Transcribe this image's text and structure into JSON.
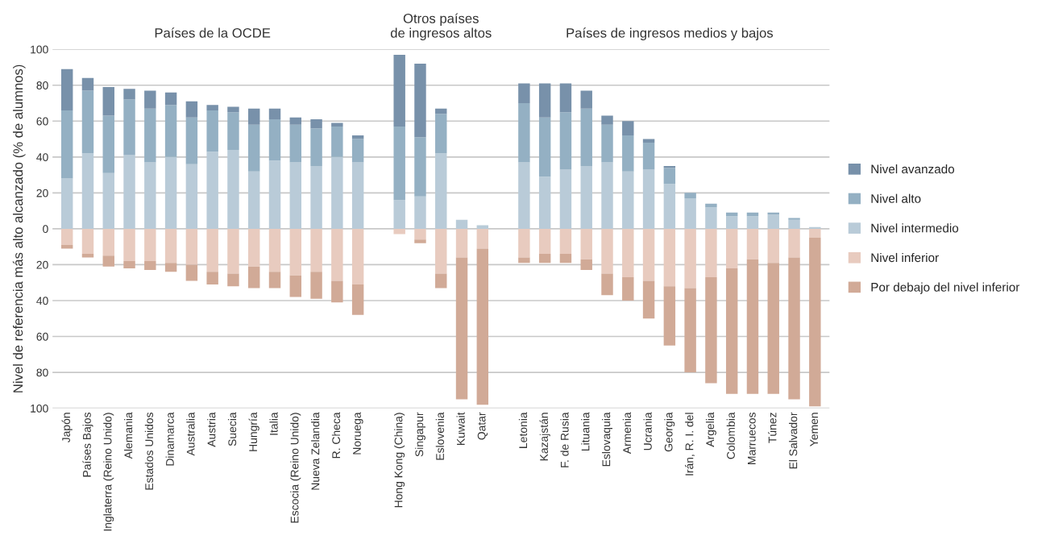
{
  "chart_data": {
    "type": "bar",
    "stacked": true,
    "ylabel": "Nivel de referencia más alto alcanzado (% de alumnos)",
    "categories": [
      "Japón",
      "Países Bajos",
      "Inglaterra (Reino Unido)",
      "Alemania",
      "Estados Unidos",
      "Dinamarca",
      "Australia",
      "Austria",
      "Suecia",
      "Hungría",
      "Italia",
      "Escocia (Reino Unido)",
      "Nueva Zelandia",
      "R. Checa",
      "Noruega",
      null,
      "Hong Kong (China)",
      "Singapur",
      "Eslovenia",
      "Kuwait",
      "Qatar",
      null,
      "Letonia",
      "Kazajstán",
      "F. de Rusia",
      "Lituania",
      "Eslovaquia",
      "Armenia",
      "Ucrania",
      "Georgia",
      "Irán, R. I. del",
      "Argelia",
      "Colombia",
      "Marruecos",
      "Túnez",
      "El Salvador",
      "Yemen"
    ],
    "series": [
      {
        "name": "Nivel intermedio",
        "color": "#b9cbd8",
        "values": [
          28,
          42,
          31,
          41,
          37,
          40,
          36,
          43,
          44,
          32,
          38,
          37,
          35,
          40,
          37,
          null,
          16,
          18,
          42,
          5,
          2,
          null,
          37,
          29,
          33,
          35,
          37,
          32,
          33,
          25,
          17,
          12,
          7,
          7,
          8,
          5,
          1
        ]
      },
      {
        "name": "Nivel alto",
        "color": "#94b0c3",
        "values": [
          38,
          35,
          32,
          31,
          30,
          29,
          26,
          23,
          21,
          26,
          23,
          21,
          21,
          17,
          13,
          null,
          41,
          33,
          22,
          0,
          0,
          null,
          33,
          33,
          32,
          32,
          21,
          20,
          15,
          9,
          3,
          2,
          2,
          2,
          1,
          1,
          0
        ]
      },
      {
        "name": "Nivel avanzado",
        "color": "#7891aa",
        "values": [
          23,
          7,
          16,
          6,
          10,
          7,
          9,
          3,
          3,
          9,
          6,
          4,
          5,
          2,
          2,
          null,
          40,
          41,
          3,
          0,
          0,
          null,
          11,
          19,
          16,
          10,
          5,
          8,
          2,
          1,
          0,
          0,
          0,
          0,
          0,
          0,
          0
        ]
      },
      {
        "name": "Nivel inferior",
        "color": "#e8cbbf",
        "values": [
          -9,
          -14,
          -15,
          -18,
          -18,
          -19,
          -20,
          -24,
          -25,
          -21,
          -24,
          -26,
          -24,
          -29,
          -31,
          null,
          -3,
          -6,
          -25,
          -16,
          -11,
          null,
          -16,
          -14,
          -14,
          -17,
          -25,
          -27,
          -29,
          -32,
          -33,
          -27,
          -22,
          -17,
          -19,
          -16,
          -5
        ]
      },
      {
        "name": "Por debajo del nivel inferior",
        "color": "#d1aa97",
        "values": [
          -2,
          -2,
          -6,
          -4,
          -5,
          -5,
          -9,
          -7,
          -7,
          -12,
          -9,
          -12,
          -15,
          -12,
          -17,
          null,
          0,
          -2,
          -8,
          -79,
          -87,
          null,
          -3,
          -5,
          -5,
          -6,
          -12,
          -13,
          -21,
          -33,
          -47,
          -59,
          -70,
          -75,
          -73,
          -79,
          -94
        ]
      }
    ],
    "ylim": [
      -100,
      100
    ],
    "yticks": [
      {
        "value": -100,
        "label": "100"
      },
      {
        "value": -80,
        "label": "80"
      },
      {
        "value": -60,
        "label": "60"
      },
      {
        "value": -40,
        "label": "40"
      },
      {
        "value": -20,
        "label": "20"
      },
      0,
      20,
      40,
      60,
      80,
      100
    ],
    "grid": "y",
    "legend": "right",
    "annotations": [
      "Países de la OCDE",
      "Otros países\nde ingresos altos",
      "Países de ingresos medios y bajos"
    ]
  }
}
